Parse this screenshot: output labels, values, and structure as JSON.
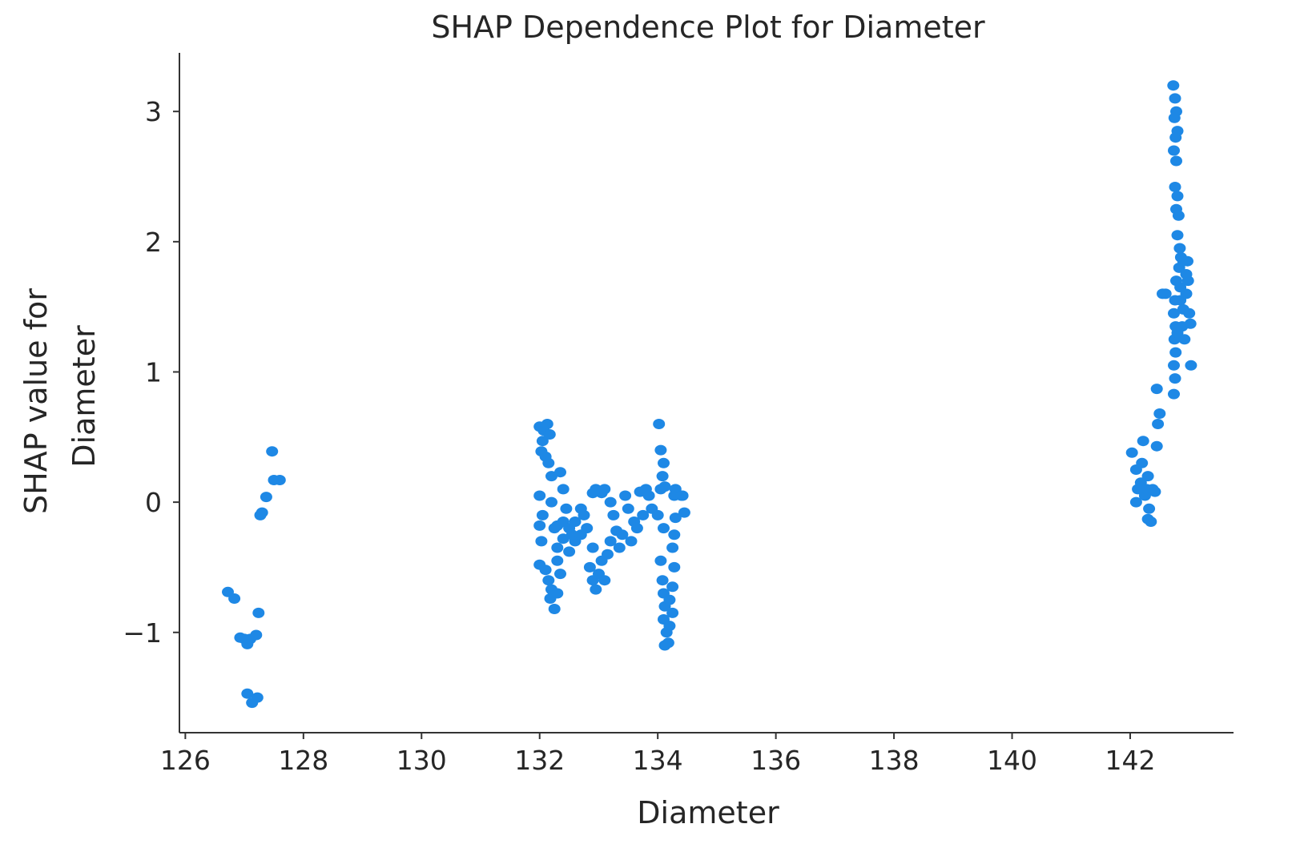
{
  "chart_data": {
    "type": "scatter",
    "title": "SHAP Dependence Plot for Diameter",
    "xlabel": "Diameter",
    "ylabel_lines": [
      "SHAP value for",
      "Diameter"
    ],
    "xlim": [
      125.9,
      143.75
    ],
    "ylim": [
      -1.77,
      3.45
    ],
    "xticks": [
      126,
      128,
      130,
      132,
      134,
      136,
      138,
      140,
      142
    ],
    "yticks": [
      -1,
      0,
      1,
      2,
      3
    ],
    "ytick_labels": [
      "−1",
      "0",
      "1",
      "2",
      "3"
    ],
    "point_color": "#1e88e5",
    "grid": false,
    "points": [
      [
        126.72,
        -0.69
      ],
      [
        126.83,
        -0.74
      ],
      [
        126.93,
        -1.04
      ],
      [
        127.0,
        -1.05
      ],
      [
        127.05,
        -1.09
      ],
      [
        127.1,
        -1.05
      ],
      [
        127.2,
        -1.02
      ],
      [
        127.05,
        -1.47
      ],
      [
        127.13,
        -1.54
      ],
      [
        127.22,
        -1.5
      ],
      [
        127.24,
        -0.85
      ],
      [
        127.27,
        -0.1
      ],
      [
        127.3,
        -0.08
      ],
      [
        127.37,
        0.04
      ],
      [
        127.47,
        0.39
      ],
      [
        127.5,
        0.17
      ],
      [
        127.6,
        0.17
      ],
      [
        132.0,
        0.58
      ],
      [
        132.07,
        0.55
      ],
      [
        132.13,
        0.6
      ],
      [
        132.17,
        0.52
      ],
      [
        132.05,
        0.47
      ],
      [
        132.03,
        0.39
      ],
      [
        132.1,
        0.35
      ],
      [
        132.15,
        0.3
      ],
      [
        132.2,
        0.2
      ],
      [
        132.0,
        0.05
      ],
      [
        132.05,
        -0.1
      ],
      [
        132.0,
        -0.18
      ],
      [
        132.03,
        -0.3
      ],
      [
        132.0,
        -0.48
      ],
      [
        132.1,
        -0.52
      ],
      [
        132.15,
        -0.6
      ],
      [
        132.2,
        -0.67
      ],
      [
        132.18,
        -0.74
      ],
      [
        132.25,
        -0.82
      ],
      [
        132.3,
        -0.7
      ],
      [
        132.35,
        -0.55
      ],
      [
        132.3,
        -0.45
      ],
      [
        132.35,
        0.23
      ],
      [
        132.4,
        0.1
      ],
      [
        132.45,
        -0.05
      ],
      [
        132.3,
        -0.18
      ],
      [
        132.4,
        -0.28
      ],
      [
        132.5,
        -0.38
      ],
      [
        132.55,
        -0.25
      ],
      [
        132.6,
        -0.15
      ],
      [
        132.7,
        -0.05
      ],
      [
        132.8,
        -0.2
      ],
      [
        132.9,
        -0.35
      ],
      [
        132.85,
        -0.5
      ],
      [
        132.9,
        -0.6
      ],
      [
        132.95,
        -0.67
      ],
      [
        133.0,
        -0.55
      ],
      [
        133.05,
        -0.45
      ],
      [
        133.1,
        -0.6
      ],
      [
        133.15,
        -0.4
      ],
      [
        132.9,
        0.07
      ],
      [
        132.95,
        0.1
      ],
      [
        133.05,
        0.07
      ],
      [
        133.1,
        0.1
      ],
      [
        133.2,
        0.0
      ],
      [
        133.25,
        -0.1
      ],
      [
        133.3,
        -0.22
      ],
      [
        133.35,
        -0.35
      ],
      [
        133.45,
        0.05
      ],
      [
        133.5,
        -0.05
      ],
      [
        133.6,
        -0.15
      ],
      [
        133.7,
        0.08
      ],
      [
        133.8,
        0.1
      ],
      [
        133.9,
        -0.05
      ],
      [
        134.0,
        -0.1
      ],
      [
        134.05,
        0.1
      ],
      [
        134.1,
        -0.2
      ],
      [
        134.02,
        0.6
      ],
      [
        134.05,
        0.4
      ],
      [
        134.1,
        0.3
      ],
      [
        134.08,
        0.2
      ],
      [
        134.12,
        0.12
      ],
      [
        134.05,
        -0.45
      ],
      [
        134.08,
        -0.6
      ],
      [
        134.1,
        -0.7
      ],
      [
        134.12,
        -0.8
      ],
      [
        134.1,
        -0.9
      ],
      [
        134.15,
        -1.0
      ],
      [
        134.12,
        -1.1
      ],
      [
        134.18,
        -1.08
      ],
      [
        134.2,
        -0.95
      ],
      [
        134.25,
        -0.85
      ],
      [
        134.2,
        -0.75
      ],
      [
        134.25,
        -0.65
      ],
      [
        134.28,
        -0.5
      ],
      [
        134.25,
        -0.35
      ],
      [
        134.28,
        -0.25
      ],
      [
        134.3,
        -0.12
      ],
      [
        134.28,
        0.05
      ],
      [
        134.3,
        0.1
      ],
      [
        134.4,
        0.05
      ],
      [
        134.45,
        -0.08
      ],
      [
        134.42,
        0.05
      ],
      [
        132.2,
        0.0
      ],
      [
        132.25,
        -0.2
      ],
      [
        132.3,
        -0.35
      ],
      [
        132.4,
        -0.15
      ],
      [
        132.5,
        -0.2
      ],
      [
        132.6,
        -0.3
      ],
      [
        132.7,
        -0.25
      ],
      [
        132.75,
        -0.1
      ],
      [
        133.2,
        -0.3
      ],
      [
        133.4,
        -0.25
      ],
      [
        133.55,
        -0.3
      ],
      [
        133.65,
        -0.2
      ],
      [
        133.75,
        -0.1
      ],
      [
        133.85,
        0.05
      ],
      [
        142.03,
        0.38
      ],
      [
        142.1,
        0.25
      ],
      [
        142.13,
        0.1
      ],
      [
        142.1,
        0.0
      ],
      [
        142.18,
        0.15
      ],
      [
        142.2,
        0.3
      ],
      [
        142.22,
        0.47
      ],
      [
        142.25,
        0.05
      ],
      [
        142.28,
        0.1
      ],
      [
        142.3,
        0.2
      ],
      [
        142.32,
        -0.05
      ],
      [
        142.35,
        -0.15
      ],
      [
        142.3,
        -0.13
      ],
      [
        142.38,
        0.1
      ],
      [
        142.42,
        0.08
      ],
      [
        142.45,
        0.43
      ],
      [
        142.47,
        0.6
      ],
      [
        142.5,
        0.68
      ],
      [
        142.45,
        0.87
      ],
      [
        142.55,
        1.6
      ],
      [
        142.6,
        1.6
      ],
      [
        142.73,
        3.2
      ],
      [
        142.76,
        3.1
      ],
      [
        142.78,
        3.0
      ],
      [
        142.75,
        2.95
      ],
      [
        142.8,
        2.85
      ],
      [
        142.77,
        2.8
      ],
      [
        142.74,
        2.7
      ],
      [
        142.78,
        2.62
      ],
      [
        142.76,
        2.42
      ],
      [
        142.8,
        2.35
      ],
      [
        142.78,
        2.25
      ],
      [
        142.82,
        2.2
      ],
      [
        142.8,
        2.05
      ],
      [
        142.84,
        1.95
      ],
      [
        142.86,
        1.88
      ],
      [
        142.83,
        1.8
      ],
      [
        142.78,
        1.7
      ],
      [
        142.76,
        1.55
      ],
      [
        142.74,
        1.45
      ],
      [
        142.77,
        1.35
      ],
      [
        142.75,
        1.25
      ],
      [
        142.77,
        1.15
      ],
      [
        142.74,
        1.05
      ],
      [
        142.76,
        0.95
      ],
      [
        142.74,
        0.83
      ],
      [
        142.85,
        1.55
      ],
      [
        142.9,
        1.48
      ],
      [
        142.88,
        1.35
      ],
      [
        142.92,
        1.25
      ],
      [
        142.95,
        1.6
      ],
      [
        142.98,
        1.7
      ],
      [
        143.0,
        1.45
      ],
      [
        143.02,
        1.37
      ],
      [
        142.97,
        1.85
      ],
      [
        143.03,
        1.05
      ],
      [
        142.9,
        1.85
      ],
      [
        142.95,
        1.75
      ],
      [
        142.85,
        1.65
      ],
      [
        142.8,
        1.3
      ]
    ]
  }
}
